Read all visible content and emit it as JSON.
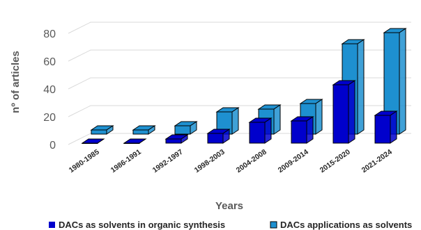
{
  "chart_data": {
    "type": "bar",
    "xlabel": "Years",
    "ylabel": "nº of articles",
    "ylim": [
      0,
      90
    ],
    "yticks": [
      0,
      20,
      40,
      60,
      80
    ],
    "grid": true,
    "legend_position": "bottom",
    "categories": [
      "1980-1985",
      "1986-1991",
      "1992-1997",
      "1998-2003",
      "2004-2008",
      "2009-2014",
      "2015-2020",
      "2021-2024"
    ],
    "series": [
      {
        "name": "DACs as solvents in organic synthesis",
        "values": [
          0,
          0,
          3,
          7,
          15,
          16,
          42,
          20
        ],
        "color": "#0000cc"
      },
      {
        "name": "DACs applications as solvents",
        "values": [
          3,
          3,
          6,
          16,
          18,
          22,
          65,
          73
        ],
        "color": "#1e90d0"
      }
    ]
  }
}
